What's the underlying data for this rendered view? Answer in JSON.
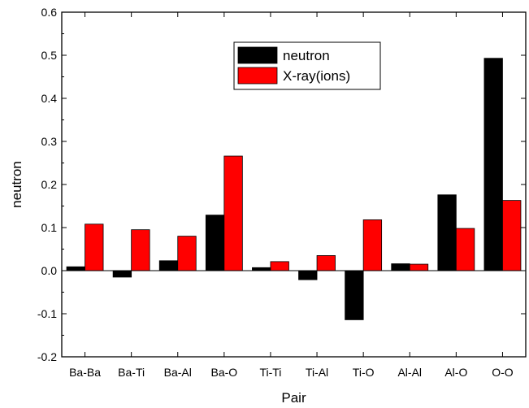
{
  "colors": {
    "neutron": "#000000",
    "xray": "#ff0000",
    "axis": "#000000",
    "background": "#ffffff"
  },
  "chart_data": {
    "type": "bar",
    "title": "",
    "xlabel": "Pair",
    "ylabel": "neutron",
    "ylim": [
      -0.2,
      0.6
    ],
    "yticks": [
      "-0.2",
      "-0.1",
      "0.0",
      "0.1",
      "0.2",
      "0.3",
      "0.4",
      "0.5",
      "0.6"
    ],
    "grid": false,
    "legend_position": "top-center",
    "categories": [
      "Ba-Ba",
      "Ba-Ti",
      "Ba-Al",
      "Ba-O",
      "Ti-Ti",
      "Ti-Al",
      "Ti-O",
      "Al-Al",
      "Al-O",
      "O-O"
    ],
    "series": [
      {
        "name": "neutron",
        "color": "#000000",
        "values": [
          0.009,
          -0.015,
          0.023,
          0.129,
          0.007,
          -0.021,
          -0.114,
          0.016,
          0.176,
          0.493
        ]
      },
      {
        "name": "X-ray(ions)",
        "color": "#ff0000",
        "values": [
          0.108,
          0.095,
          0.08,
          0.266,
          0.021,
          0.035,
          0.118,
          0.015,
          0.098,
          0.163
        ]
      }
    ]
  }
}
